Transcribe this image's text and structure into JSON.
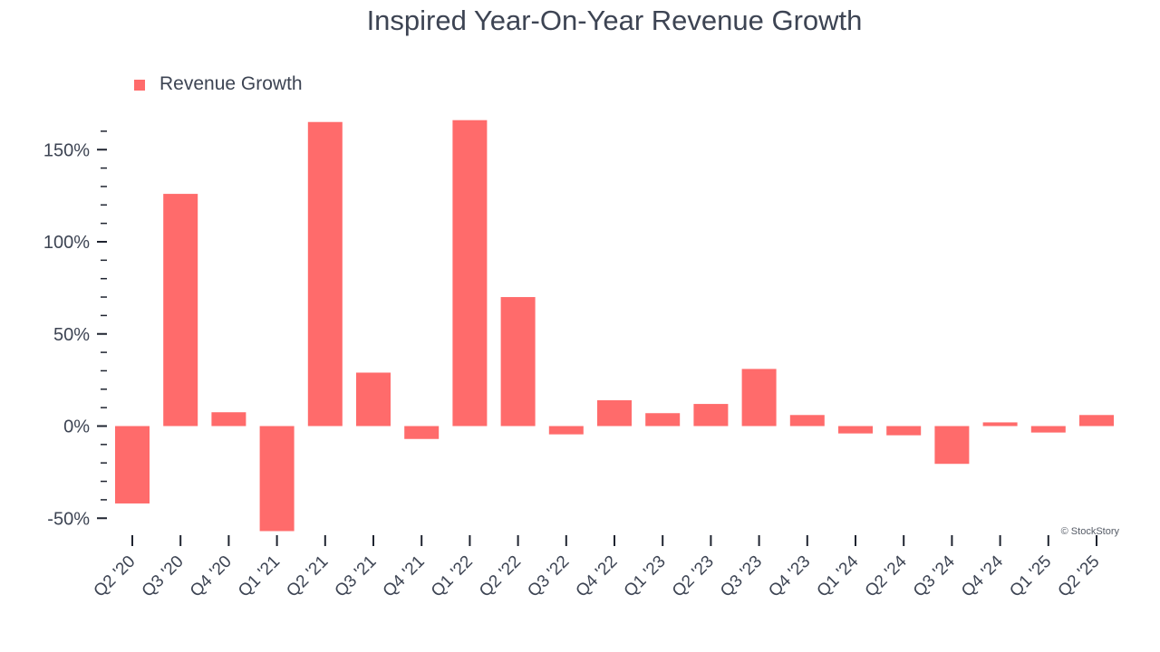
{
  "chart_data": {
    "type": "bar",
    "title": "Inspired Year-On-Year Revenue Growth",
    "xlabel": "",
    "ylabel": "",
    "ylim": [
      -58,
      168
    ],
    "yticks": [
      -50,
      0,
      50,
      100,
      150
    ],
    "ytick_labels": [
      "-50%",
      "0%",
      "50%",
      "100%",
      "150%"
    ],
    "categories": [
      "Q2 '20",
      "Q3 '20",
      "Q4 '20",
      "Q1 '21",
      "Q2 '21",
      "Q3 '21",
      "Q4 '21",
      "Q1 '22",
      "Q2 '22",
      "Q3 '22",
      "Q4 '22",
      "Q1 '23",
      "Q2 '23",
      "Q3 '23",
      "Q4 '23",
      "Q1 '24",
      "Q2 '24",
      "Q3 '24",
      "Q4 '24",
      "Q1 '25",
      "Q2 '25"
    ],
    "series": [
      {
        "name": "Revenue Growth",
        "color": "#ff6b6b",
        "values": [
          -42,
          126,
          7.5,
          -57,
          165,
          29,
          -7,
          166,
          70,
          -4.5,
          14,
          7,
          12,
          31,
          6,
          -4,
          -5,
          -20.5,
          2,
          -3.5,
          6
        ]
      }
    ],
    "legend_position": "top-left",
    "grid": false,
    "credit": "© StockStory"
  }
}
